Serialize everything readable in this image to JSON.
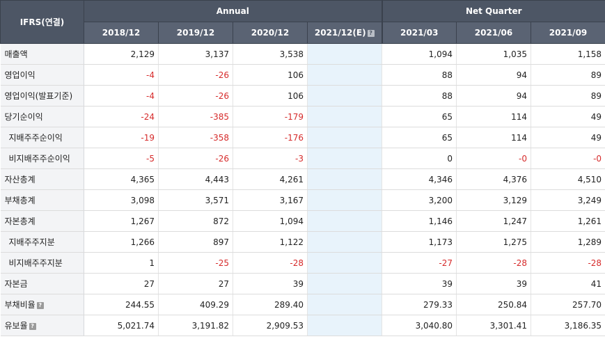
{
  "header": {
    "corner": "IFRS(연결)",
    "annual_label": "Annual",
    "quarter_label": "Net Quarter",
    "annual_columns": [
      "2018/12",
      "2019/12",
      "2020/12",
      "2021/12(E)"
    ],
    "quarter_columns": [
      "2021/03",
      "2021/06",
      "2021/09"
    ]
  },
  "rows": [
    {
      "label": "매출액",
      "sub": false,
      "help": false,
      "values": [
        "2,129",
        "3,137",
        "3,538",
        "",
        "1,094",
        "1,035",
        "1,158"
      ]
    },
    {
      "label": "영업이익",
      "sub": false,
      "help": false,
      "values": [
        "-4",
        "-26",
        "106",
        "",
        "88",
        "94",
        "89"
      ]
    },
    {
      "label": "영업이익(발표기준)",
      "sub": false,
      "help": false,
      "values": [
        "-4",
        "-26",
        "106",
        "",
        "88",
        "94",
        "89"
      ]
    },
    {
      "label": "당기순이익",
      "sub": false,
      "help": false,
      "values": [
        "-24",
        "-385",
        "-179",
        "",
        "65",
        "114",
        "49"
      ]
    },
    {
      "label": "지배주주순이익",
      "sub": true,
      "help": false,
      "values": [
        "-19",
        "-358",
        "-176",
        "",
        "65",
        "114",
        "49"
      ]
    },
    {
      "label": "비지배주주순이익",
      "sub": true,
      "help": false,
      "values": [
        "-5",
        "-26",
        "-3",
        "",
        "0",
        "-0",
        "-0"
      ]
    },
    {
      "label": "자산총계",
      "sub": false,
      "help": false,
      "values": [
        "4,365",
        "4,443",
        "4,261",
        "",
        "4,346",
        "4,376",
        "4,510"
      ]
    },
    {
      "label": "부채총계",
      "sub": false,
      "help": false,
      "values": [
        "3,098",
        "3,571",
        "3,167",
        "",
        "3,200",
        "3,129",
        "3,249"
      ]
    },
    {
      "label": "자본총계",
      "sub": false,
      "help": false,
      "values": [
        "1,267",
        "872",
        "1,094",
        "",
        "1,146",
        "1,247",
        "1,261"
      ]
    },
    {
      "label": "지배주주지분",
      "sub": true,
      "help": false,
      "values": [
        "1,266",
        "897",
        "1,122",
        "",
        "1,173",
        "1,275",
        "1,289"
      ]
    },
    {
      "label": "비지배주주지분",
      "sub": true,
      "help": false,
      "values": [
        "1",
        "-25",
        "-28",
        "",
        "-27",
        "-28",
        "-28"
      ]
    },
    {
      "label": "자본금",
      "sub": false,
      "help": false,
      "values": [
        "27",
        "27",
        "39",
        "",
        "39",
        "39",
        "41"
      ]
    },
    {
      "label": "부채비율",
      "sub": false,
      "help": true,
      "values": [
        "244.55",
        "409.29",
        "289.40",
        "",
        "279.33",
        "250.84",
        "257.70"
      ]
    },
    {
      "label": "유보율",
      "sub": false,
      "help": true,
      "values": [
        "5,021.74",
        "3,191.82",
        "2,909.53",
        "",
        "3,040.80",
        "3,301.41",
        "3,186.35"
      ]
    }
  ],
  "colors": {
    "header_bg": "#4d5665",
    "negative": "#d62b2b",
    "estimate_bg": "#e8f3fb",
    "label_bg": "#f3f4f6"
  },
  "icons": {
    "help": "question-mark-square-icon"
  }
}
